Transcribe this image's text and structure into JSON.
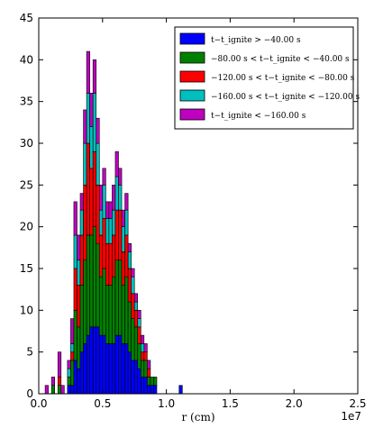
{
  "chart_data": {
    "type": "bar",
    "stacked": true,
    "xlim": [
      0,
      25000000
    ],
    "ylim": [
      0,
      45
    ],
    "x_ticks": [
      0,
      5000000,
      10000000,
      15000000,
      20000000,
      25000000
    ],
    "x_tick_labels": [
      "0.0",
      "0.5",
      "1.0",
      "1.5",
      "2.0",
      "2.5"
    ],
    "x_offset_label": "1e7",
    "y_ticks": [
      0,
      5,
      10,
      15,
      20,
      25,
      30,
      35,
      40,
      45
    ],
    "y_tick_labels": [
      "0",
      "5",
      "10",
      "15",
      "20",
      "25",
      "30",
      "35",
      "40",
      "45"
    ],
    "xlabel": "r  (cm)",
    "bin_width": 250000,
    "bin_start": 500000,
    "legend": {
      "position": "top-right",
      "entries": [
        "t−t_ignite > −40.00 s",
        "−80.00 s < t−t_ignite < −40.00 s",
        "−120.00 s < t−t_ignite < −80.00 s",
        "−160.00 s < t−t_ignite < −120.00 s",
        "t−t_ignite < −160.00 s"
      ]
    },
    "series": [
      {
        "name": "t−t_ignite > −40.00 s",
        "color": "#0000ff",
        "values": [
          0,
          0,
          0,
          0,
          0,
          0,
          0,
          1,
          1,
          4,
          3,
          5,
          6,
          7,
          8,
          8,
          8,
          7,
          7,
          6,
          6,
          6,
          7,
          7,
          6,
          6,
          5,
          4,
          4,
          3,
          2,
          2,
          1,
          1,
          1,
          0,
          0,
          0,
          0,
          0,
          0,
          0,
          1
        ]
      },
      {
        "name": "−80.00 s < t−t_ignite < −40.00 s",
        "color": "#008000",
        "values": [
          0,
          0,
          1,
          0,
          1,
          0,
          0,
          1,
          3,
          6,
          5,
          8,
          10,
          12,
          11,
          12,
          10,
          7,
          8,
          7,
          7,
          8,
          9,
          9,
          7,
          8,
          6,
          5,
          4,
          3,
          2,
          2,
          1,
          1,
          1,
          0,
          0,
          0,
          0,
          0,
          0,
          0,
          0
        ]
      },
      {
        "name": "−120.00 s < t−t_ignite < −80.00 s",
        "color": "#ff0000",
        "values": [
          0,
          0,
          0,
          0,
          1,
          0,
          0,
          0,
          1,
          5,
          5,
          6,
          9,
          11,
          8,
          9,
          7,
          5,
          6,
          5,
          5,
          5,
          6,
          6,
          4,
          5,
          4,
          3,
          2,
          2,
          1,
          1,
          1,
          0,
          0,
          0,
          0,
          0,
          0,
          0,
          0,
          0,
          0
        ]
      },
      {
        "name": "−160.00 s < t−t_ignite < −120.00 s",
        "color": "#00bfbf",
        "values": [
          0,
          0,
          0,
          0,
          0,
          0,
          0,
          1,
          1,
          4,
          3,
          3,
          5,
          6,
          5,
          7,
          5,
          3,
          4,
          3,
          3,
          3,
          4,
          3,
          3,
          3,
          2,
          2,
          1,
          1,
          1,
          0,
          0,
          0,
          0,
          0,
          0,
          0,
          0,
          0,
          0,
          0,
          0
        ]
      },
      {
        "name": "t−t_ignite < −160.00 s",
        "color": "#bf00bf",
        "values": [
          1,
          0,
          1,
          0,
          3,
          1,
          0,
          1,
          3,
          4,
          3,
          2,
          4,
          5,
          4,
          4,
          3,
          3,
          2,
          2,
          2,
          3,
          3,
          2,
          2,
          2,
          1,
          1,
          1,
          1,
          1,
          1,
          1,
          0,
          0,
          0,
          0,
          0,
          0,
          0,
          0,
          0,
          0
        ]
      }
    ]
  }
}
